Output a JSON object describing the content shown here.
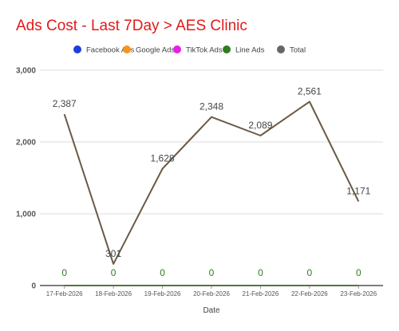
{
  "chart_data": {
    "type": "line",
    "title": "Ads Cost - Last 7Day > AES Clinic",
    "xlabel": "Date",
    "ylabel": "",
    "ylim": [
      0,
      3000
    ],
    "y_ticks": [
      0,
      1000,
      2000,
      3000
    ],
    "y_tick_labels": [
      "0",
      "1,000",
      "2,000",
      "3,000"
    ],
    "grid": true,
    "legend_position": "top",
    "categories": [
      "17-Feb-2026",
      "18-Feb-2026",
      "19-Feb-2026",
      "20-Feb-2026",
      "21-Feb-2026",
      "22-Feb-2026",
      "23-Feb-2026"
    ],
    "series": [
      {
        "name": "Facebook Ads",
        "color": "#1a3fe0",
        "values": [
          0,
          0,
          0,
          0,
          0,
          0,
          0
        ],
        "labels": []
      },
      {
        "name": "Google Ads",
        "color": "#f7941d",
        "values": [
          0,
          0,
          0,
          0,
          0,
          0,
          0
        ],
        "labels": []
      },
      {
        "name": "TikTok Ads",
        "color": "#e81ee8",
        "values": [
          0,
          0,
          0,
          0,
          0,
          0,
          0
        ],
        "labels": []
      },
      {
        "name": "Line Ads",
        "color": "#2e7d1f",
        "values": [
          0,
          0,
          0,
          0,
          0,
          0,
          0
        ],
        "labels": [
          "0",
          "0",
          "0",
          "0",
          "0",
          "0",
          "0"
        ]
      },
      {
        "name": "Total",
        "color": "#6b5a45",
        "legend_color": "#666666",
        "values": [
          2387,
          301,
          1628,
          2348,
          2089,
          2561,
          1171
        ],
        "labels": [
          "2,387",
          "301",
          "1,628",
          "2,348",
          "2,089",
          "2,561",
          "1,171"
        ]
      }
    ]
  }
}
